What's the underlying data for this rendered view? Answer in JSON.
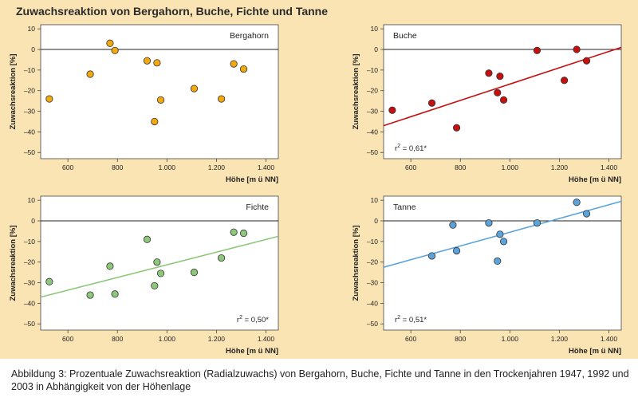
{
  "figure": {
    "title": "Zuwachsreaktion von Bergahorn, Buche, Fichte und Tanne",
    "caption": "Abbildung 3: Prozentuale Zuwachsreaktion (Radialzuwachs) von Bergahorn, Buche, Fichte und Tanne in den Trockenjahren 1947, 1992 und 2003 in Abhängigkeit von der Höhenlage",
    "background": "#fbe4b4",
    "plot_background": "#ffffff"
  },
  "chart_data": [
    {
      "type": "scatter",
      "title": "Bergahorn",
      "xlabel": "Höhe [m ü NN]",
      "ylabel": "Zuwachsreaktion [%]",
      "xlim": [
        490,
        1450
      ],
      "ylim": [
        -53,
        12
      ],
      "xticks": [
        600,
        800,
        1000,
        1200,
        1400
      ],
      "xtick_labels": [
        "600",
        "800",
        "1.000",
        "1.200",
        "1.400"
      ],
      "yticks": [
        10,
        0,
        -10,
        -20,
        -30,
        -40,
        -50
      ],
      "ytick_labels": [
        "10",
        "0",
        "–10",
        "–20",
        "–30",
        "–40",
        "–50"
      ],
      "color": "#f2a90f",
      "points": [
        {
          "x": 525,
          "y": -24
        },
        {
          "x": 690,
          "y": -12
        },
        {
          "x": 770,
          "y": 3
        },
        {
          "x": 790,
          "y": -0.5
        },
        {
          "x": 920,
          "y": -5.5
        },
        {
          "x": 950,
          "y": -35
        },
        {
          "x": 960,
          "y": -6.5
        },
        {
          "x": 975,
          "y": -24.5
        },
        {
          "x": 1110,
          "y": -19
        },
        {
          "x": 1220,
          "y": -24
        },
        {
          "x": 1270,
          "y": -7
        },
        {
          "x": 1310,
          "y": -9.5
        }
      ]
    },
    {
      "type": "scatter",
      "title": "Buche",
      "annotation": "r² = 0,61*",
      "xlabel": "Höhe [m ü NN]",
      "ylabel": "Zuwachsreaktion [%]",
      "xlim": [
        490,
        1450
      ],
      "ylim": [
        -53,
        12
      ],
      "xticks": [
        600,
        800,
        1000,
        1200,
        1400
      ],
      "xtick_labels": [
        "600",
        "800",
        "1.000",
        "1.200",
        "1.400"
      ],
      "yticks": [
        10,
        0,
        -10,
        -20,
        -30,
        -40,
        -50
      ],
      "ytick_labels": [
        "10",
        "0",
        "–10",
        "–20",
        "–30",
        "–40",
        "–50"
      ],
      "color": "#c4100f",
      "trend": {
        "x": [
          490,
          1450
        ],
        "y": [
          -37,
          1
        ]
      },
      "points": [
        {
          "x": 525,
          "y": -29.5
        },
        {
          "x": 685,
          "y": -26
        },
        {
          "x": 785,
          "y": -38
        },
        {
          "x": 915,
          "y": -11.5
        },
        {
          "x": 950,
          "y": -21
        },
        {
          "x": 960,
          "y": -13
        },
        {
          "x": 975,
          "y": -24.5
        },
        {
          "x": 1110,
          "y": -0.5
        },
        {
          "x": 1220,
          "y": -15
        },
        {
          "x": 1270,
          "y": 0
        },
        {
          "x": 1310,
          "y": -5.5
        }
      ]
    },
    {
      "type": "scatter",
      "title": "Fichte",
      "annotation": "r² = 0,50*",
      "xlabel": "Höhe [m ü NN]",
      "ylabel": "Zuwachsreaktion [%]",
      "xlim": [
        490,
        1450
      ],
      "ylim": [
        -53,
        12
      ],
      "xticks": [
        600,
        800,
        1000,
        1200,
        1400
      ],
      "xtick_labels": [
        "600",
        "800",
        "1.000",
        "1.200",
        "1.400"
      ],
      "yticks": [
        10,
        0,
        -10,
        -20,
        -30,
        -40,
        -50
      ],
      "ytick_labels": [
        "10",
        "0",
        "–10",
        "–20",
        "–30",
        "–40",
        "–50"
      ],
      "color": "#8cc77a",
      "trend": {
        "x": [
          490,
          1450
        ],
        "y": [
          -37,
          -7.5
        ]
      },
      "points": [
        {
          "x": 525,
          "y": -29.5
        },
        {
          "x": 690,
          "y": -36
        },
        {
          "x": 770,
          "y": -22
        },
        {
          "x": 790,
          "y": -35.5
        },
        {
          "x": 920,
          "y": -9
        },
        {
          "x": 950,
          "y": -31.5
        },
        {
          "x": 960,
          "y": -20
        },
        {
          "x": 975,
          "y": -25.5
        },
        {
          "x": 1110,
          "y": -25
        },
        {
          "x": 1220,
          "y": -18
        },
        {
          "x": 1270,
          "y": -5.5
        },
        {
          "x": 1310,
          "y": -6
        }
      ]
    },
    {
      "type": "scatter",
      "title": "Tanne",
      "annotation": "r² = 0,51*",
      "xlabel": "Höhe [m ü NN]",
      "ylabel": "Zuwachsreaktion [%]",
      "xlim": [
        490,
        1450
      ],
      "ylim": [
        -53,
        12
      ],
      "xticks": [
        600,
        800,
        1000,
        1200,
        1400
      ],
      "xtick_labels": [
        "600",
        "800",
        "1.000",
        "1.200",
        "1.400"
      ],
      "yticks": [
        10,
        0,
        -10,
        -20,
        -30,
        -40,
        -50
      ],
      "ytick_labels": [
        "10",
        "0",
        "–10",
        "–20",
        "–30",
        "–40",
        "–50"
      ],
      "color": "#5ba3db",
      "trend": {
        "x": [
          490,
          1450
        ],
        "y": [
          -22.5,
          9.5
        ]
      },
      "points": [
        {
          "x": 685,
          "y": -17
        },
        {
          "x": 770,
          "y": -2
        },
        {
          "x": 785,
          "y": -14.5
        },
        {
          "x": 915,
          "y": -1
        },
        {
          "x": 950,
          "y": -19.5
        },
        {
          "x": 960,
          "y": -6.5
        },
        {
          "x": 975,
          "y": -10
        },
        {
          "x": 1110,
          "y": -1
        },
        {
          "x": 1270,
          "y": 9
        },
        {
          "x": 1310,
          "y": 3.5
        }
      ]
    }
  ]
}
